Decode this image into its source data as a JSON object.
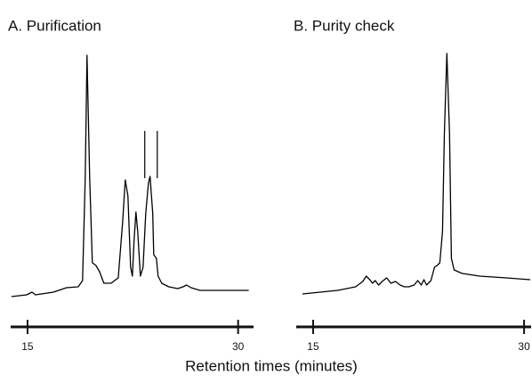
{
  "xlabel": "Retention times (minutes)",
  "chart_data": [
    {
      "type": "line",
      "title": "A. Purification",
      "color": "#000000",
      "x": [
        13.86,
        14.94,
        15.32,
        15.57,
        16.84,
        17.78,
        18.61,
        18.92,
        19.11,
        19.24,
        19.43,
        19.62,
        19.87,
        20.13,
        20.44,
        20.95,
        21.46,
        21.77,
        21.96,
        22.15,
        22.34,
        22.47,
        22.59,
        22.72,
        22.85,
        23.04,
        23.23,
        23.42,
        23.61,
        23.73,
        23.92,
        23.99,
        24.18,
        24.3,
        24.56,
        25.06,
        25.7,
        26.08,
        26.33,
        26.65,
        27.28,
        30.76
      ],
      "values": [
        0,
        2,
        5,
        2,
        5,
        10,
        11,
        18,
        133,
        271,
        133,
        38,
        35,
        28,
        15,
        15,
        21,
        83,
        131,
        113,
        33,
        23,
        63,
        95,
        73,
        23,
        33,
        93,
        127,
        135,
        93,
        47,
        43,
        23,
        15,
        11,
        9,
        11,
        13,
        10,
        7,
        7
      ],
      "fraction_markers": [
        23.35,
        24.24
      ],
      "xlim": [
        13.8,
        31.1
      ],
      "ylim": [
        0,
        280
      ],
      "xticks": [
        15,
        30
      ]
    },
    {
      "type": "line",
      "title": "B. Purity check",
      "color": "#000000",
      "x": [
        14.24,
        15.5,
        16.76,
        18.02,
        18.53,
        18.78,
        19.03,
        19.22,
        19.41,
        19.66,
        19.91,
        20.23,
        20.54,
        20.86,
        21.18,
        21.49,
        21.81,
        22.18,
        22.44,
        22.69,
        22.88,
        23.07,
        23.38,
        23.63,
        23.82,
        24.01,
        24.2,
        24.33,
        24.51,
        24.7,
        24.83,
        25.02,
        25.59,
        26.85,
        28.74,
        30.44
      ],
      "values": [
        3,
        5,
        7,
        11,
        17,
        23,
        19,
        15,
        18,
        13,
        17,
        21,
        15,
        17,
        13,
        11,
        11,
        13,
        18,
        13,
        19,
        13,
        18,
        33,
        35,
        38,
        73,
        183,
        273,
        183,
        43,
        30,
        26,
        23,
        21,
        19
      ],
      "xlim": [
        13.8,
        30.5
      ],
      "ylim": [
        0,
        280
      ],
      "xticks": [
        15,
        30
      ]
    }
  ]
}
